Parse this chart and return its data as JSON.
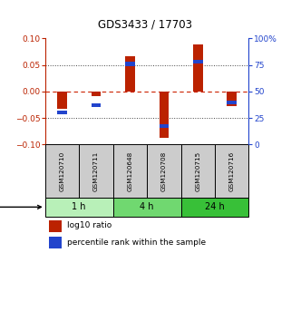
{
  "title": "GDS3433 / 17703",
  "samples": [
    "GSM120710",
    "GSM120711",
    "GSM120648",
    "GSM120708",
    "GSM120715",
    "GSM120716"
  ],
  "groups": [
    {
      "label": "1 h",
      "indices": [
        0,
        1
      ],
      "color": "#b8f0b8"
    },
    {
      "label": "4 h",
      "indices": [
        2,
        3
      ],
      "color": "#70d870"
    },
    {
      "label": "24 h",
      "indices": [
        4,
        5
      ],
      "color": "#38c038"
    }
  ],
  "log10_ratio": [
    -0.033,
    -0.008,
    0.067,
    -0.087,
    0.088,
    -0.028
  ],
  "percentile_rank": [
    30,
    37,
    76,
    17,
    78,
    40
  ],
  "ylim_left": [
    -0.1,
    0.1
  ],
  "ylim_right": [
    0,
    100
  ],
  "yticks_left": [
    -0.1,
    -0.05,
    0,
    0.05,
    0.1
  ],
  "yticks_right": [
    0,
    25,
    50,
    75,
    100
  ],
  "red_color": "#bb2200",
  "blue_color": "#2244cc",
  "zero_line_color": "#cc2200",
  "bar_bg_color": "#cccccc",
  "title_fontsize": 8.5
}
